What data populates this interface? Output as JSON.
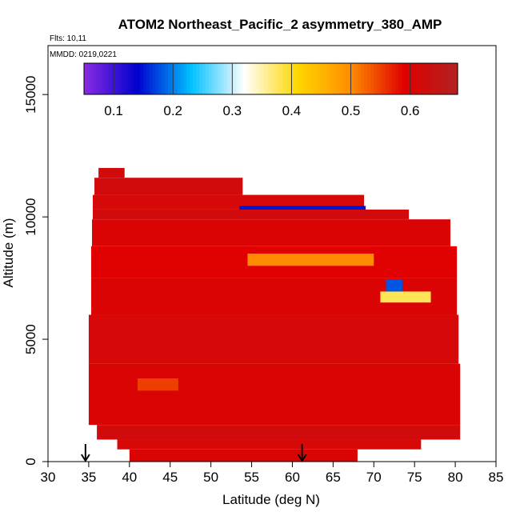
{
  "chart_data": {
    "type": "heatmap",
    "title": "ATOM2 Northeast_Pacific_2 asymmetry_380_AMP",
    "flights_label": "Flts: 10,11",
    "mmdd_label": "MMDD: 0219,0221",
    "xlabel": "Latitude (deg N)",
    "ylabel": "Altitude (m)",
    "xlim": [
      30,
      85
    ],
    "ylim": [
      0,
      17000
    ],
    "x_ticks": [
      30,
      35,
      40,
      45,
      50,
      55,
      60,
      65,
      70,
      75,
      80,
      85
    ],
    "y_ticks": [
      0,
      5000,
      10000,
      15000
    ],
    "colorbar": {
      "range": [
        0.05,
        0.68
      ],
      "ticks": [
        0.1,
        0.2,
        0.3,
        0.4,
        0.5,
        0.6
      ],
      "colors": [
        "#8a2be2",
        "#0000cd",
        "#00bfff",
        "#ffffff",
        "#ffd700",
        "#ff8c00",
        "#e00000",
        "#b22222"
      ],
      "legend_position": "top"
    },
    "background_value": 0.6,
    "cells": [
      {
        "lat": [
          36.2,
          39.4
        ],
        "alt": [
          11600,
          12000
        ],
        "value": 0.62
      },
      {
        "lat": [
          35.7,
          53.9
        ],
        "alt": [
          10900,
          11600
        ],
        "value": 0.62
      },
      {
        "lat": [
          35.5,
          68.8
        ],
        "alt": [
          10300,
          10900
        ],
        "value": 0.61
      },
      {
        "lat": [
          53.5,
          69.0
        ],
        "alt": [
          9950,
          10450
        ],
        "value": 0.15
      },
      {
        "lat": [
          35.5,
          74.3
        ],
        "alt": [
          9900,
          10300
        ],
        "value": 0.62
      },
      {
        "lat": [
          35.4,
          79.4
        ],
        "alt": [
          8800,
          9900
        ],
        "value": 0.6
      },
      {
        "lat": [
          35.3,
          80.2
        ],
        "alt": [
          7500,
          8800
        ],
        "value": 0.59
      },
      {
        "lat": [
          54.5,
          70.0
        ],
        "alt": [
          8000,
          8500
        ],
        "value": 0.5
      },
      {
        "lat": [
          35.3,
          80.2
        ],
        "alt": [
          6000,
          7500
        ],
        "value": 0.6
      },
      {
        "lat": [
          71.5,
          73.5
        ],
        "alt": [
          6750,
          7450
        ],
        "value": 0.18
      },
      {
        "lat": [
          70.8,
          77.0
        ],
        "alt": [
          6500,
          6950
        ],
        "value": 0.38
      },
      {
        "lat": [
          35.0,
          80.4
        ],
        "alt": [
          4000,
          6000
        ],
        "value": 0.61
      },
      {
        "lat": [
          35.0,
          80.6
        ],
        "alt": [
          1500,
          4000
        ],
        "value": 0.6
      },
      {
        "lat": [
          41.0,
          46.0
        ],
        "alt": [
          2900,
          3400
        ],
        "value": 0.55
      },
      {
        "lat": [
          36.0,
          80.6
        ],
        "alt": [
          900,
          1500
        ],
        "value": 0.62
      },
      {
        "lat": [
          38.5,
          75.8
        ],
        "alt": [
          500,
          900
        ],
        "value": 0.61
      },
      {
        "lat": [
          40.0,
          68.0
        ],
        "alt": [
          0,
          500
        ],
        "value": 0.6
      }
    ],
    "markers": [
      {
        "lat": 34.6,
        "alt": 0
      },
      {
        "lat": 61.2,
        "alt": 0
      }
    ]
  }
}
